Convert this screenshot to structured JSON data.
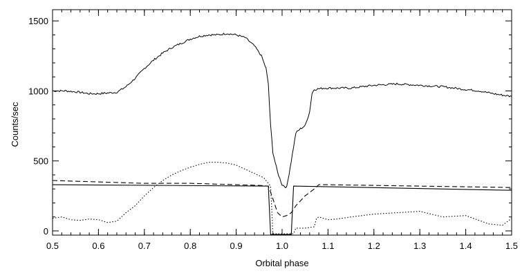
{
  "chart_data": {
    "type": "line",
    "title": "",
    "xlabel": "Orbital phase",
    "ylabel": "Counts/sec",
    "xlim": [
      0.5,
      1.5
    ],
    "ylim": [
      -30,
      1580
    ],
    "x_ticks": [
      0.5,
      0.6,
      0.7,
      0.8,
      0.9,
      1.0,
      1.1,
      1.2,
      1.3,
      1.4,
      1.5
    ],
    "x_tick_labels": [
      "0.5",
      "0.6",
      "0.7",
      "0.8",
      "0.9",
      "1.0",
      "1.1",
      "1.2",
      "1.3",
      "1.4",
      "1.5"
    ],
    "y_ticks": [
      0,
      500,
      1000,
      1500
    ],
    "y_tick_labels": [
      "0",
      "500",
      "1000",
      "1500"
    ],
    "grid": false,
    "legend": "none",
    "series": [
      {
        "style": "solid-noisy",
        "color": "#000000",
        "x": [
          0.5,
          0.53,
          0.56,
          0.58,
          0.6,
          0.62,
          0.64,
          0.66,
          0.68,
          0.7,
          0.72,
          0.74,
          0.76,
          0.78,
          0.8,
          0.82,
          0.84,
          0.86,
          0.88,
          0.9,
          0.92,
          0.94,
          0.955,
          0.965,
          0.97,
          0.975,
          0.98,
          0.99,
          1.0,
          1.01,
          1.02,
          1.03,
          1.04,
          1.05,
          1.06,
          1.065,
          1.07,
          1.09,
          1.12,
          1.15,
          1.2,
          1.25,
          1.3,
          1.35,
          1.4,
          1.43,
          1.46,
          1.5
        ],
        "y": [
          1000,
          1000,
          990,
          980,
          980,
          985,
          990,
          1030,
          1090,
          1160,
          1220,
          1270,
          1310,
          1340,
          1370,
          1390,
          1400,
          1400,
          1410,
          1400,
          1380,
          1320,
          1250,
          1160,
          1050,
          750,
          560,
          420,
          330,
          310,
          500,
          700,
          730,
          750,
          850,
          980,
          1010,
          1020,
          1020,
          1020,
          1040,
          1050,
          1040,
          1030,
          1010,
          1000,
          980,
          960
        ]
      },
      {
        "style": "solid",
        "color": "#000000",
        "x": [
          0.5,
          0.97,
          0.975,
          1.02,
          1.025,
          1.5
        ],
        "y": [
          330,
          320,
          -25,
          -25,
          320,
          290
        ]
      },
      {
        "style": "dashed",
        "color": "#000000",
        "x": [
          0.5,
          0.6,
          0.7,
          0.8,
          0.9,
          0.95,
          0.97,
          0.98,
          0.99,
          1.0,
          1.01,
          1.02,
          1.03,
          1.05,
          1.07,
          1.08,
          1.1,
          1.2,
          1.3,
          1.4,
          1.5
        ],
        "y": [
          360,
          350,
          340,
          340,
          330,
          325,
          320,
          230,
          130,
          100,
          110,
          130,
          180,
          250,
          300,
          330,
          330,
          325,
          320,
          315,
          310
        ]
      },
      {
        "style": "dotted",
        "color": "#000000",
        "x": [
          0.5,
          0.52,
          0.54,
          0.56,
          0.58,
          0.6,
          0.62,
          0.64,
          0.66,
          0.68,
          0.7,
          0.72,
          0.74,
          0.76,
          0.78,
          0.8,
          0.82,
          0.84,
          0.86,
          0.88,
          0.9,
          0.92,
          0.94,
          0.96,
          0.975,
          0.98,
          1.025,
          1.03,
          1.05,
          1.07,
          1.075,
          1.08,
          1.1,
          1.12,
          1.15,
          1.2,
          1.25,
          1.3,
          1.35,
          1.4,
          1.45,
          1.48,
          1.5
        ],
        "y": [
          90,
          100,
          80,
          75,
          85,
          80,
          60,
          70,
          130,
          180,
          250,
          310,
          360,
          400,
          430,
          455,
          475,
          490,
          490,
          485,
          470,
          440,
          410,
          380,
          320,
          -20,
          -20,
          20,
          20,
          30,
          90,
          100,
          80,
          85,
          100,
          120,
          130,
          140,
          100,
          110,
          50,
          40,
          90
        ]
      }
    ]
  }
}
